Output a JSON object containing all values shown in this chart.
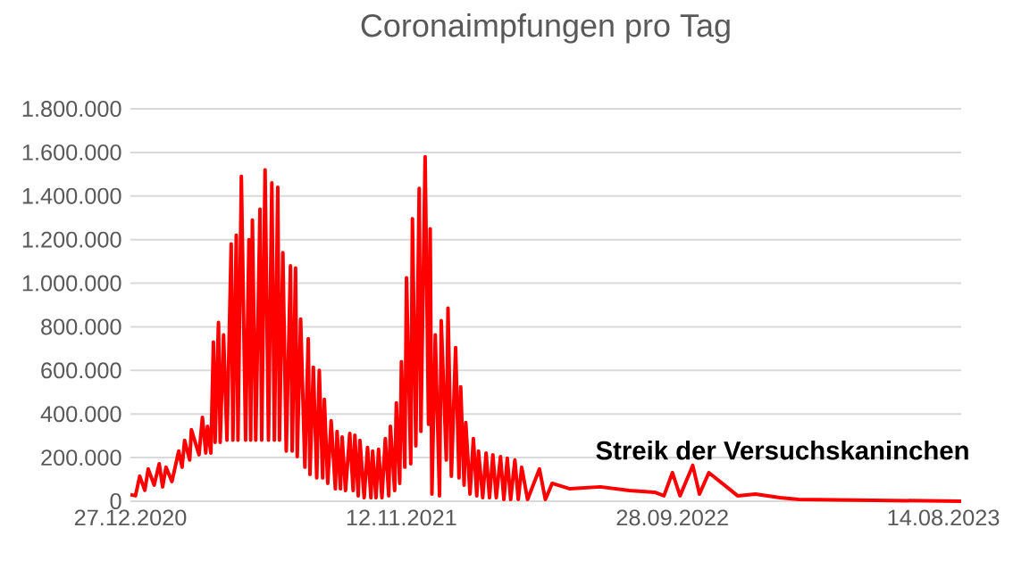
{
  "chart_data": {
    "type": "line",
    "title": "Coronaimpfungen pro Tag",
    "annotations": [
      "Streik der Versuchskaninchen"
    ],
    "x": [
      "2020-12-27",
      "2021-01-02",
      "2021-01-07",
      "2021-01-13",
      "2021-01-17",
      "2021-01-24",
      "2021-01-30",
      "2021-02-03",
      "2021-02-07",
      "2021-02-14",
      "2021-02-22",
      "2021-02-26",
      "2021-03-01",
      "2021-03-07",
      "2021-03-09",
      "2021-03-18",
      "2021-03-22",
      "2021-03-26",
      "2021-03-28",
      "2021-04-01",
      "2021-04-04",
      "2021-04-06",
      "2021-04-10",
      "2021-04-12",
      "2021-04-16",
      "2021-04-20",
      "2021-04-25",
      "2021-04-27",
      "2021-05-01",
      "2021-05-03",
      "2021-05-07",
      "2021-05-12",
      "2021-05-16",
      "2021-05-18",
      "2021-05-20",
      "2021-05-24",
      "2021-05-29",
      "2021-05-31",
      "2021-06-04",
      "2021-06-08",
      "2021-06-12",
      "2021-06-15",
      "2021-06-19",
      "2021-06-21",
      "2021-06-25",
      "2021-06-29",
      "2021-07-04",
      "2021-07-06",
      "2021-07-10",
      "2021-07-12",
      "2021-07-16",
      "2021-07-21",
      "2021-07-25",
      "2021-07-27",
      "2021-07-31",
      "2021-08-04",
      "2021-08-07",
      "2021-08-11",
      "2021-08-13",
      "2021-08-17",
      "2021-08-21",
      "2021-08-26",
      "2021-08-28",
      "2021-09-01",
      "2021-09-03",
      "2021-09-07",
      "2021-09-12",
      "2021-09-16",
      "2021-09-18",
      "2021-09-22",
      "2021-09-24",
      "2021-09-29",
      "2021-10-03",
      "2021-10-07",
      "2021-10-09",
      "2021-10-13",
      "2021-10-16",
      "2021-10-20",
      "2021-10-24",
      "2021-10-28",
      "2021-10-30",
      "2021-11-04",
      "2021-11-06",
      "2021-11-10",
      "2021-11-12",
      "2021-11-16",
      "2021-11-18",
      "2021-11-23",
      "2021-11-25",
      "2021-11-29",
      "2021-12-03",
      "2021-12-05",
      "2021-12-10",
      "2021-12-14",
      "2021-12-16",
      "2021-12-18",
      "2021-12-22",
      "2021-12-27",
      "2021-12-29",
      "2022-01-04",
      "2022-01-06",
      "2022-01-10",
      "2022-01-15",
      "2022-01-19",
      "2022-01-21",
      "2022-01-25",
      "2022-01-27",
      "2022-02-01",
      "2022-02-05",
      "2022-02-09",
      "2022-02-11",
      "2022-02-16",
      "2022-02-20",
      "2022-02-24",
      "2022-02-28",
      "2022-03-04",
      "2022-03-09",
      "2022-03-13",
      "2022-03-17",
      "2022-03-21",
      "2022-03-26",
      "2022-03-30",
      "2022-04-03",
      "2022-04-10",
      "2022-04-24",
      "2022-05-01",
      "2022-05-09",
      "2022-05-30",
      "2022-07-05",
      "2022-08-08",
      "2022-09-07",
      "2022-09-18",
      "2022-09-28",
      "2022-10-07",
      "2022-10-22",
      "2022-10-30",
      "2022-11-10",
      "2022-12-01",
      "2022-12-14",
      "2023-01-04",
      "2023-02-02",
      "2023-02-24",
      "2023-09-04"
    ],
    "series": [
      {
        "color": "#ff0000",
        "values": [
          30000,
          25000,
          115000,
          50000,
          148000,
          74000,
          172000,
          66000,
          156000,
          90000,
          230000,
          156000,
          279000,
          189000,
          328000,
          213000,
          385000,
          221000,
          344000,
          221000,
          730000,
          270000,
          820000,
          270000,
          763000,
          280000,
          1180000,
          280000,
          1220000,
          280000,
          1490000,
          280000,
          1200000,
          280000,
          1290000,
          280000,
          1340000,
          280000,
          1520000,
          280000,
          1460000,
          280000,
          1440000,
          280000,
          1140000,
          230000,
          1080000,
          230000,
          1070000,
          205000,
          836000,
          156000,
          746000,
          123000,
          615000,
          107000,
          600000,
          107000,
          467000,
          82000,
          369000,
          57000,
          320000,
          57000,
          295000,
          49000,
          311000,
          49000,
          303000,
          25000,
          279000,
          16000,
          246000,
          16000,
          230000,
          16000,
          238000,
          16000,
          287000,
          25000,
          344000,
          49000,
          451000,
          82000,
          640000,
          156000,
          1025000,
          172000,
          1296000,
          254000,
          1435000,
          320000,
          1580000,
          353000,
          1250000,
          33000,
          763000,
          25000,
          828000,
          189000,
          886000,
          115000,
          705000,
          107000,
          525000,
          74000,
          361000,
          33000,
          287000,
          25000,
          230000,
          16000,
          221000,
          16000,
          213000,
          16000,
          205000,
          8000,
          197000,
          8000,
          189000,
          8000,
          156000,
          8000,
          148000,
          8000,
          82000,
          57000,
          66000,
          49000,
          41000,
          25000,
          131000,
          25000,
          164000,
          33000,
          131000,
          66000,
          25000,
          33000,
          16000,
          8000,
          0
        ]
      }
    ],
    "xlim": [
      "2020-12-27",
      "2023-09-04"
    ],
    "xticks": [
      {
        "value": "2020-12-27",
        "label": "27.12.2020"
      },
      {
        "value": "2021-11-12",
        "label": "12.11.2021"
      },
      {
        "value": "2022-09-28",
        "label": "28.09.2022"
      },
      {
        "value": "2023-08-14",
        "label": "14.08.2023"
      }
    ],
    "ylim": [
      0,
      1800000
    ],
    "yticks": [
      {
        "value": 0,
        "label": "0"
      },
      {
        "value": 200000,
        "label": "200.000"
      },
      {
        "value": 400000,
        "label": "400.000"
      },
      {
        "value": 600000,
        "label": "600.000"
      },
      {
        "value": 800000,
        "label": "800.000"
      },
      {
        "value": 1000000,
        "label": "1.000.000"
      },
      {
        "value": 1200000,
        "label": "1.200.000"
      },
      {
        "value": 1400000,
        "label": "1.400.000"
      },
      {
        "value": 1600000,
        "label": "1.600.000"
      },
      {
        "value": 1800000,
        "label": "1.800.000"
      }
    ],
    "grid": "y",
    "marker": "none",
    "line_style": "solid"
  }
}
